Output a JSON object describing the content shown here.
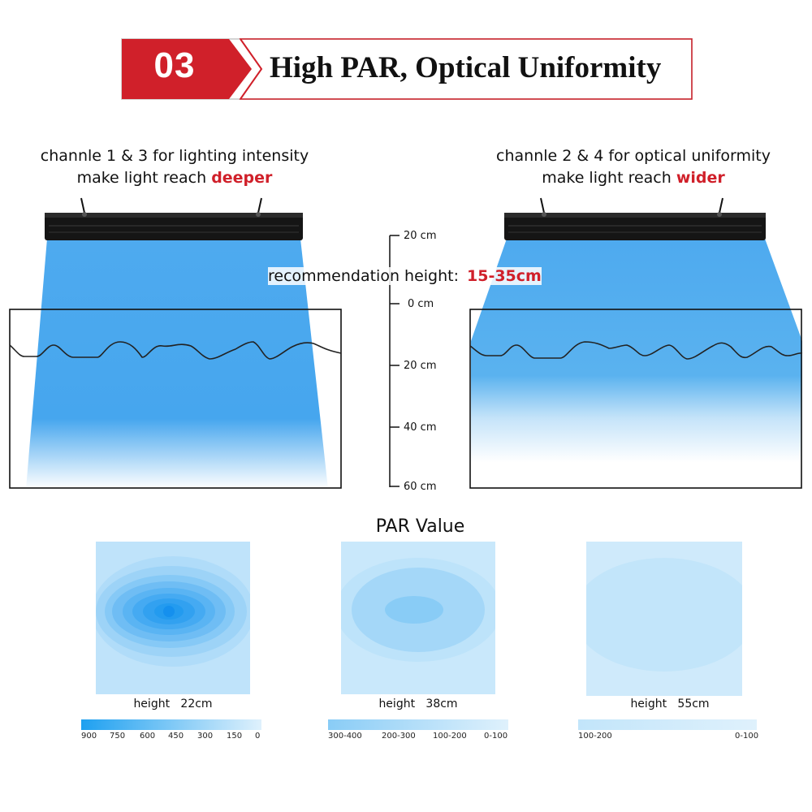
{
  "header": {
    "number": "03",
    "title": "High PAR, Optical Uniformity",
    "colors": {
      "red": "#d0202a",
      "border": "#d9d9d9"
    }
  },
  "left_panel": {
    "caption_line1": "channle 1 & 3 for lighting intensity",
    "caption_line2_prefix": "make light reach ",
    "caption_line2_emphasis": "deeper"
  },
  "right_panel": {
    "caption_line1": "channle 2 & 4 for optical uniformity",
    "caption_line2_prefix": "make light reach ",
    "caption_line2_emphasis": "wider"
  },
  "recommendation": {
    "label": "recommendation height:",
    "value": "15-35cm"
  },
  "scale": {
    "ticks": [
      "20 cm",
      "0 cm",
      "20 cm",
      "40 cm",
      "60 cm"
    ]
  },
  "par": {
    "title": "PAR Value",
    "maps": [
      {
        "height_label": "height   22cm",
        "legend_labels": [
          "900",
          "750",
          "600",
          "450",
          "300",
          "150",
          "0"
        ]
      },
      {
        "height_label": "height   38cm",
        "legend_labels": [
          "300-400",
          "200-300",
          "100-200",
          "0-100"
        ]
      },
      {
        "height_label": "height   55cm",
        "legend_labels": [
          "100-200",
          "0-100"
        ]
      }
    ]
  },
  "colors": {
    "beam": "#43a6ef",
    "heat_max": "#1ea0f0",
    "heat_min": "#dff1fc"
  }
}
